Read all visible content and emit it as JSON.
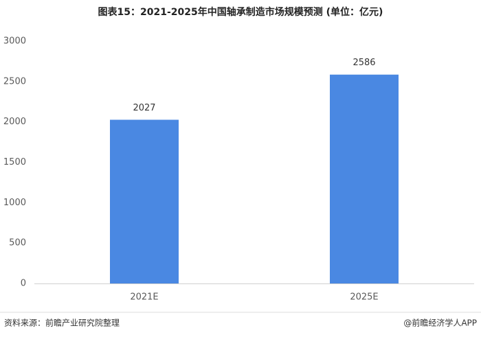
{
  "chart_data": {
    "type": "bar",
    "title": "图表15：2021-2025年中国轴承制造市场规模预测 (单位：亿元)",
    "categories": [
      "2021E",
      "2025E"
    ],
    "values": [
      2027,
      2586
    ],
    "color": "#4a88e2",
    "ylim": [
      0,
      3000
    ],
    "yticks": [
      0,
      500,
      1000,
      1500,
      2000,
      2500,
      3000
    ],
    "grid": false,
    "source": "资料来源：前瞻产业研究院整理",
    "credit": "@前瞻经济学人APP"
  }
}
